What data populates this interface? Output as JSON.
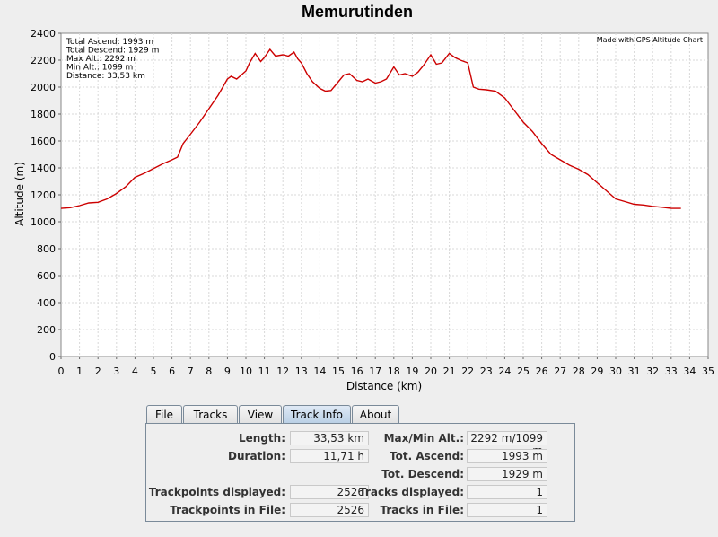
{
  "chart_data": {
    "type": "line",
    "title": "Memurutinden",
    "xlabel": "Distance (km)",
    "ylabel": "Altitude (m)",
    "xlim": [
      0,
      35
    ],
    "ylim": [
      0,
      2400
    ],
    "x_ticks": [
      0,
      1,
      2,
      3,
      4,
      5,
      6,
      7,
      8,
      9,
      10,
      11,
      12,
      13,
      14,
      15,
      16,
      17,
      18,
      19,
      20,
      21,
      22,
      23,
      24,
      25,
      26,
      27,
      28,
      29,
      30,
      31,
      32,
      33,
      34,
      35
    ],
    "y_ticks": [
      0,
      200,
      400,
      600,
      800,
      1000,
      1200,
      1400,
      1600,
      1800,
      2000,
      2200,
      2400
    ],
    "grid": true,
    "line_color": "#cc0000",
    "annotation_lines": [
      "Total Ascend: 1993 m",
      "Total Descend: 1929 m",
      "Max Alt.: 2292 m",
      "Min Alt.: 1099 m",
      "Distance: 33,53 km"
    ],
    "watermark": "Made with GPS Altitude Chart",
    "series": [
      {
        "x": [
          0,
          0.5,
          1,
          1.5,
          2,
          2.5,
          3,
          3.5,
          4,
          4.5,
          5,
          5.5,
          6,
          6.3,
          6.6,
          7,
          7.5,
          8,
          8.5,
          9,
          9.2,
          9.5,
          10,
          10.2,
          10.5,
          10.8,
          11,
          11.3,
          11.6,
          12,
          12.3,
          12.6,
          12.8,
          13,
          13.3,
          13.6,
          14,
          14.3,
          14.6,
          15,
          15.3,
          15.6,
          16,
          16.3,
          16.6,
          17,
          17.3,
          17.6,
          18,
          18.3,
          18.6,
          19,
          19.3,
          19.6,
          20,
          20.3,
          20.6,
          21,
          21.3,
          21.6,
          22,
          22.3,
          22.6,
          23,
          23.5,
          24,
          24.5,
          25,
          25.5,
          26,
          26.5,
          27,
          27.5,
          28,
          28.5,
          29,
          29.5,
          30,
          30.5,
          31,
          31.5,
          32,
          32.5,
          33,
          33.53
        ],
        "y": [
          1099,
          1105,
          1120,
          1140,
          1145,
          1170,
          1210,
          1260,
          1330,
          1360,
          1395,
          1430,
          1460,
          1480,
          1580,
          1650,
          1740,
          1840,
          1940,
          2060,
          2080,
          2060,
          2120,
          2180,
          2250,
          2190,
          2220,
          2280,
          2230,
          2240,
          2230,
          2260,
          2210,
          2180,
          2100,
          2040,
          1990,
          1970,
          1975,
          2040,
          2090,
          2100,
          2050,
          2040,
          2060,
          2030,
          2040,
          2060,
          2150,
          2090,
          2100,
          2080,
          2110,
          2160,
          2240,
          2170,
          2180,
          2250,
          2220,
          2200,
          2180,
          2000,
          1985,
          1980,
          1970,
          1920,
          1830,
          1740,
          1670,
          1580,
          1500,
          1460,
          1420,
          1390,
          1350,
          1290,
          1230,
          1170,
          1150,
          1130,
          1125,
          1115,
          1108,
          1100,
          1099
        ]
      }
    ]
  },
  "tabs": [
    {
      "label": "File",
      "active": false
    },
    {
      "label": "Tracks",
      "active": false
    },
    {
      "label": "View",
      "active": false
    },
    {
      "label": "Track Info",
      "active": true
    },
    {
      "label": "About",
      "active": false
    }
  ],
  "track_info": {
    "length_label": "Length:",
    "length_value": "33,53 km",
    "duration_label": "Duration:",
    "duration_value": "11,71 h",
    "trackpoints_displayed_label": "Trackpoints displayed:",
    "trackpoints_displayed_value": "2526",
    "trackpoints_in_file_label": "Trackpoints in File:",
    "trackpoints_in_file_value": "2526",
    "max_min_alt_label": "Max/Min Alt.:",
    "max_min_alt_value": "2292 m/1099 m",
    "tot_ascend_label": "Tot. Ascend:",
    "tot_ascend_value": "1993 m",
    "tot_descend_label": "Tot. Descend:",
    "tot_descend_value": "1929 m",
    "tracks_displayed_label": "Tracks displayed:",
    "tracks_displayed_value": "1",
    "tracks_in_file_label": "Tracks in File:",
    "tracks_in_file_value": "1"
  }
}
